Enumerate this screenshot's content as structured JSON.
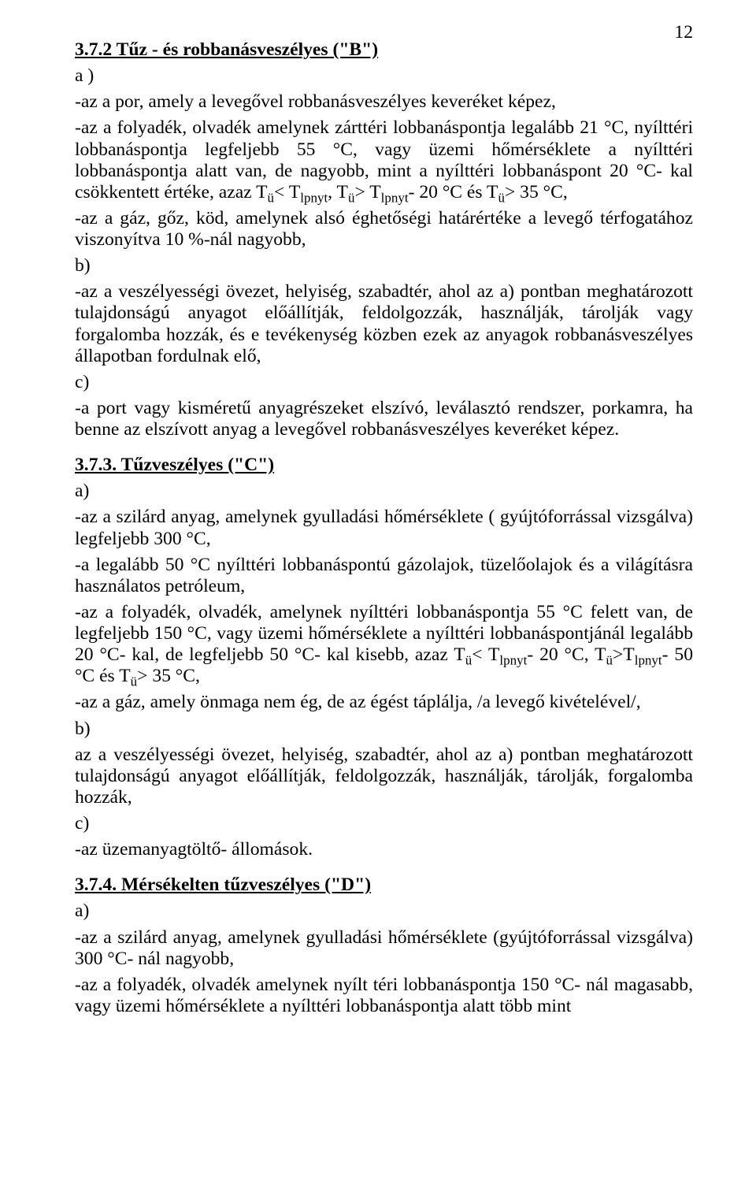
{
  "pageNumber": "12",
  "section_b": {
    "heading": "3.7.2 Tűz - és robbanásveszélyes  (\"B\")",
    "a_label": "a )",
    "a_p1_html": "-az a por, amely a levegővel robbanásveszélyes keveréket képez,",
    "a_p2_html": "-az a folyadék, olvadék amelynek zárttéri lobbanáspontja legalább 21 °C, nyílttéri lobbanáspontja legfeljebb 55 °C, vagy üzemi hőmérséklete a nyílttéri lobbanáspontja alatt van, de nagyobb, mint a nyílttéri lobbanáspont 20 °C- kal csökkentett értéke, azaz T<span class=\"sub\">ü</span>&lt; T<span class=\"sub\">lpnyt</span>, T<span class=\"sub\">ü</span>&gt; T<span class=\"sub\">lpnyt</span>- 20 °C és T<span class=\"sub\">ü</span>&gt; 35 °C,",
    "a_p3_html": "-az a gáz, gőz, köd, amelynek alsó éghetőségi határértéke a levegő térfogatához viszonyítva  10 %-nál nagyobb,",
    "b_label": "b)",
    "b_p1_html": "-az a veszélyességi övezet, helyiség, szabadtér, ahol az a) pontban meghatározott tulajdonságú anyagot előállítják, feldolgozzák, használják, tárolják vagy forgalomba hozzák, és e tevékenység közben ezek az anyagok robbanásveszélyes állapotban fordulnak elő,",
    "c_label": "c)",
    "c_p1_html": "-a port vagy kisméretű anyagrészeket elszívó, leválasztó rendszer, porkamra, ha benne az elszívott anyag a levegővel robbanásveszélyes keveréket képez."
  },
  "section_c": {
    "heading": "3.7.3. Tűzveszélyes  (\"C\")",
    "a_label": "a)",
    "a_p1_html": " -az a szilárd anyag, amelynek gyulladási hőmérséklete ( gyújtóforrással vizsgálva) legfeljebb 300  °C,",
    "a_p2_html": "-a legalább 50  °C nyílttéri lobbanáspontú gázolajok, tüzelőolajok és a világításra használatos petróleum,",
    "a_p3_html": "-az a folyadék, olvadék, amelynek nyílttéri lobbanáspontja 55 °C felett van, de legfeljebb 150 °C, vagy üzemi hőmérséklete a nyílttéri lobbanáspontjánál legalább 20 °C- kal, de legfeljebb 50 °C- kal kisebb, azaz T<span class=\"sub\">ü</span>&lt; T<span class=\"sub\">lpnyt</span>- 20 °C, T<span class=\"sub\">ü</span>&gt;T<span class=\"sub\">lpnyt</span>- 50 °C és T<span class=\"sub\">ü</span>&gt; 35 °C,",
    "a_p4_html": "-az a gáz, amely önmaga nem  ég, de az  égést táplálja, /a levegő kivételével/,",
    "b_label": "b)",
    "b_p1_html": "az a veszélyességi övezet, helyiség, szabadtér, ahol az a) pontban meghatározott tulajdonságú anyagot előállítják, feldolgozzák, használják, tárolják, forgalomba hozzák,",
    "c_label": "c)",
    "c_p1_html": "-az üzemanyagtöltő- állomások."
  },
  "section_d": {
    "heading": "3.7.4. Mérsékelten tűzveszélyes (\"D\")",
    "a_label": "a)",
    "a_p1_html": "-az a szilárd anyag, amelynek gyulladási hőmérséklete (gyújtóforrással vizsgálva) 300  °C- nál nagyobb,",
    "a_p2_html": "-az a folyadék, olvadék amelynek  nyílt téri  lobbanáspontja 150  °C- nál magasabb, vagy üzemi hőmérséklete a nyílttéri lobbanáspontja alatt több mint"
  }
}
